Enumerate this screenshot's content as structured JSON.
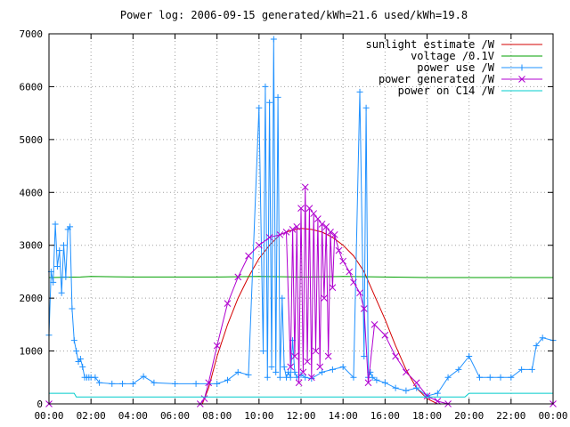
{
  "chart_data": {
    "type": "line",
    "title": "Power log: 2006-09-15 generated/kWh=21.6 used/kWh=19.8",
    "xlabel": "",
    "ylabel": "",
    "xlim": [
      0,
      24
    ],
    "ylim": [
      0,
      7000
    ],
    "x_ticks": [
      "00:00",
      "02:00",
      "04:00",
      "06:00",
      "08:00",
      "10:00",
      "12:00",
      "14:00",
      "16:00",
      "18:00",
      "20:00",
      "22:00",
      "00:00"
    ],
    "y_ticks": [
      0,
      1000,
      2000,
      3000,
      4000,
      5000,
      6000,
      7000
    ],
    "grid": true,
    "legend_position": "top-right",
    "series": [
      {
        "name": "sunlight estimate /W",
        "color": "#d40000",
        "marker": "none",
        "x": [
          0,
          7.3,
          7.6,
          8.0,
          8.5,
          9.0,
          9.5,
          10.0,
          10.5,
          11.0,
          11.5,
          12.0,
          12.5,
          13.0,
          13.5,
          14.0,
          14.5,
          15.0,
          15.5,
          16.0,
          16.5,
          17.0,
          17.5,
          18.0,
          18.5,
          24
        ],
        "values": [
          0,
          0,
          300,
          900,
          1500,
          2000,
          2400,
          2750,
          3000,
          3200,
          3280,
          3320,
          3300,
          3250,
          3150,
          3000,
          2800,
          2500,
          2050,
          1600,
          1100,
          650,
          300,
          100,
          0,
          0
        ]
      },
      {
        "name": "voltage /0.1V",
        "color": "#00a000",
        "marker": "none",
        "x": [
          0,
          1.5,
          2.0,
          4.0,
          6.0,
          8.0,
          10.0,
          12.0,
          14.0,
          16.0,
          18.0,
          20.0,
          22.0,
          24
        ],
        "values": [
          2390,
          2400,
          2410,
          2400,
          2400,
          2400,
          2410,
          2400,
          2410,
          2400,
          2390,
          2390,
          2390,
          2390
        ]
      },
      {
        "name": "power use /W",
        "color": "#1e90ff",
        "marker": "plus",
        "x": [
          0,
          0.1,
          0.2,
          0.3,
          0.4,
          0.5,
          0.6,
          0.7,
          0.8,
          0.9,
          1.0,
          1.1,
          1.2,
          1.3,
          1.4,
          1.5,
          1.6,
          1.7,
          1.8,
          1.9,
          2.0,
          2.2,
          2.4,
          3.0,
          3.5,
          4.0,
          4.5,
          5.0,
          6.0,
          7.0,
          8.0,
          8.5,
          9.0,
          9.5,
          10.0,
          10.2,
          10.3,
          10.4,
          10.5,
          10.6,
          10.7,
          10.8,
          10.9,
          11.0,
          11.1,
          11.2,
          11.3,
          11.4,
          11.5,
          11.6,
          11.7,
          11.8,
          12.0,
          12.2,
          12.5,
          13.0,
          13.5,
          14.0,
          14.5,
          14.8,
          15.0,
          15.1,
          15.2,
          15.3,
          15.4,
          15.6,
          16.0,
          16.5,
          17.0,
          17.5,
          18.0,
          18.5,
          19.0,
          19.5,
          20.0,
          20.5,
          21.0,
          21.5,
          22.0,
          22.5,
          23.0,
          23.2,
          23.5,
          24
        ],
        "values": [
          1300,
          2500,
          2300,
          3400,
          2600,
          2900,
          2100,
          3000,
          2400,
          3300,
          3350,
          1800,
          1200,
          1000,
          800,
          850,
          700,
          500,
          500,
          500,
          500,
          500,
          400,
          380,
          380,
          380,
          520,
          400,
          380,
          380,
          380,
          450,
          600,
          550,
          5600,
          1000,
          6000,
          500,
          5700,
          700,
          6900,
          600,
          5800,
          500,
          2000,
          700,
          500,
          600,
          500,
          1200,
          600,
          500,
          550,
          500,
          480,
          600,
          650,
          700,
          500,
          5900,
          900,
          5600,
          500,
          600,
          500,
          450,
          400,
          300,
          250,
          300,
          150,
          200,
          500,
          650,
          900,
          500,
          500,
          500,
          500,
          650,
          650,
          1100,
          1250,
          1200
        ]
      },
      {
        "name": "power generated /W",
        "color": "#b000d0",
        "marker": "cross",
        "x": [
          0,
          7.2,
          7.4,
          7.6,
          8.0,
          8.5,
          9.0,
          9.5,
          10.0,
          10.5,
          11.0,
          11.3,
          11.5,
          11.6,
          11.7,
          11.8,
          11.9,
          12.0,
          12.1,
          12.2,
          12.3,
          12.4,
          12.5,
          12.6,
          12.7,
          12.8,
          12.9,
          13.0,
          13.1,
          13.2,
          13.3,
          13.4,
          13.5,
          13.6,
          13.8,
          14.0,
          14.3,
          14.5,
          14.8,
          15.0,
          15.2,
          15.5,
          16.0,
          16.5,
          17.0,
          17.5,
          18.0,
          18.5,
          19.0,
          24
        ],
        "values": [
          0,
          0,
          100,
          400,
          1100,
          1900,
          2400,
          2800,
          3000,
          3150,
          3200,
          3250,
          700,
          3300,
          900,
          3350,
          400,
          3700,
          600,
          4100,
          800,
          3700,
          500,
          3600,
          1000,
          3500,
          700,
          3400,
          2000,
          3350,
          900,
          3250,
          2200,
          3200,
          2900,
          2700,
          2500,
          2300,
          2100,
          1800,
          400,
          1500,
          1300,
          900,
          600,
          400,
          150,
          50,
          0,
          0
        ]
      },
      {
        "name": "power on C14 /W",
        "color": "#00cccc",
        "marker": "none",
        "x": [
          0,
          1.2,
          1.3,
          2.0,
          6.0,
          10.0,
          14.0,
          18.0,
          19.8,
          20.0,
          22.8,
          23.0,
          24
        ],
        "values": [
          200,
          200,
          130,
          130,
          130,
          130,
          130,
          130,
          130,
          200,
          200,
          200,
          200
        ]
      }
    ]
  }
}
